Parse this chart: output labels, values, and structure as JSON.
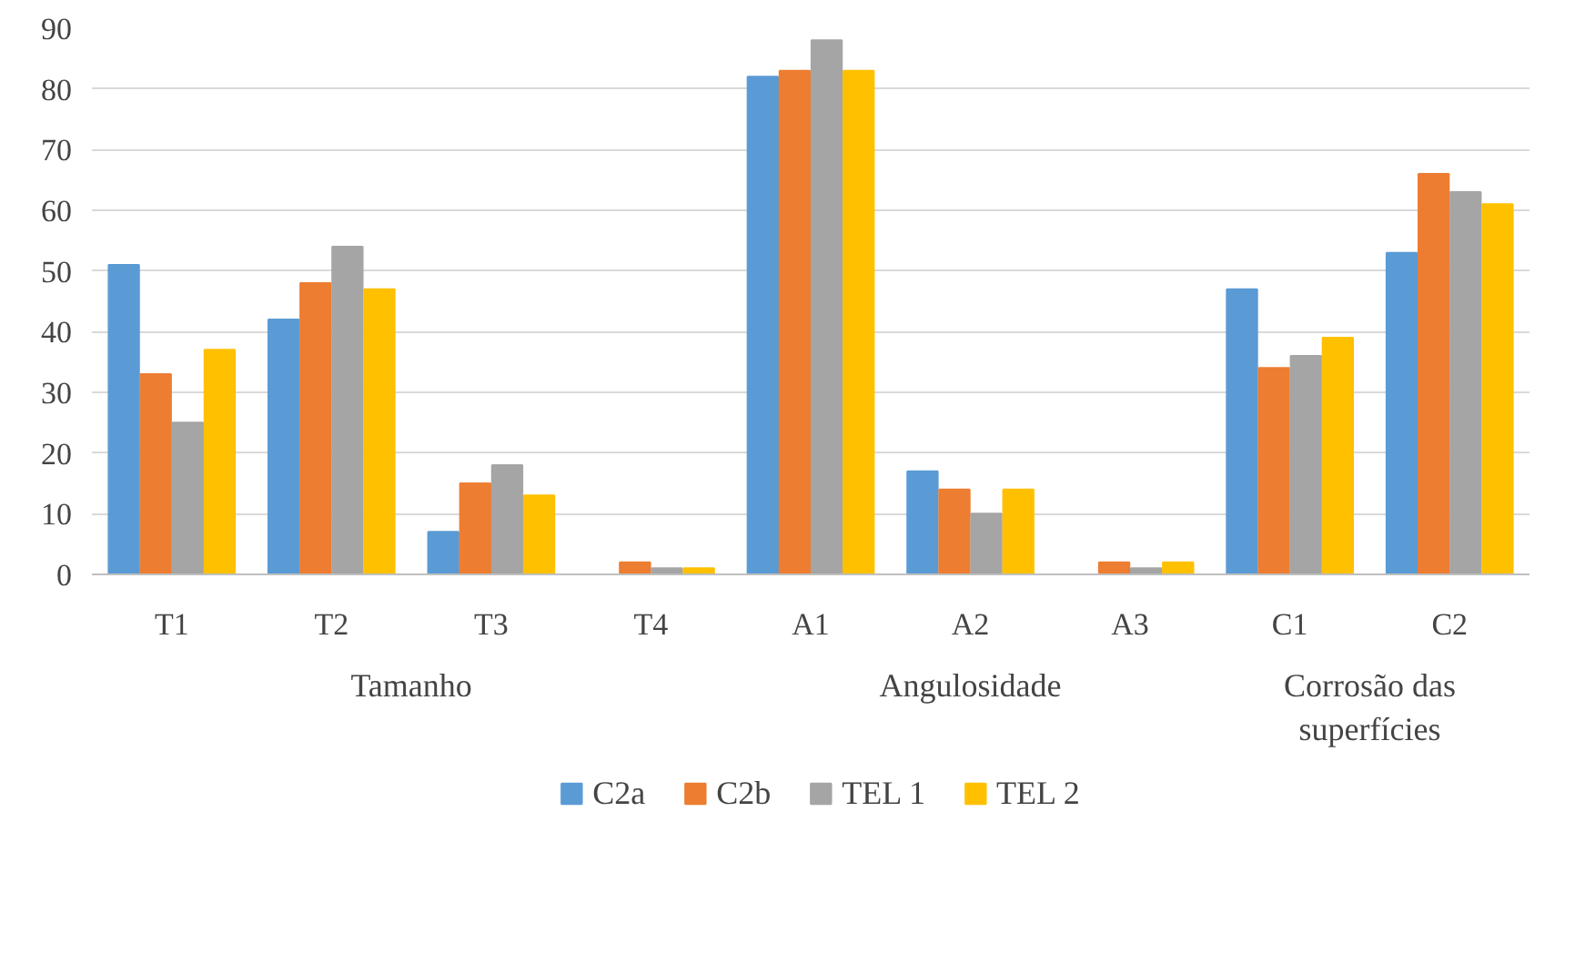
{
  "chart_data": {
    "type": "bar",
    "categories": [
      "T1",
      "T2",
      "T3",
      "T4",
      "A1",
      "A2",
      "A3",
      "C1",
      "C2"
    ],
    "series": [
      {
        "name": "C2a",
        "color": "#5b9bd5",
        "values": [
          51,
          42,
          7,
          0,
          82,
          17,
          0,
          47,
          53
        ]
      },
      {
        "name": "C2b",
        "color": "#ed7d31",
        "values": [
          33,
          48,
          15,
          2,
          83,
          14,
          2,
          34,
          66
        ]
      },
      {
        "name": "TEL 1",
        "color": "#a5a5a5",
        "values": [
          25,
          54,
          18,
          1,
          88,
          10,
          1,
          36,
          63
        ]
      },
      {
        "name": "TEL 2",
        "color": "#ffc000",
        "values": [
          37,
          47,
          13,
          1,
          83,
          14,
          2,
          39,
          61
        ]
      }
    ],
    "annotations": [
      "Tamanho",
      "Angulosidade",
      "Corrosão das\nsuperfícies"
    ],
    "ylim": [
      0,
      90
    ],
    "yticks": [
      0,
      10,
      20,
      30,
      40,
      50,
      60,
      70,
      80,
      90
    ],
    "grid": "y",
    "legend": "bottom"
  }
}
